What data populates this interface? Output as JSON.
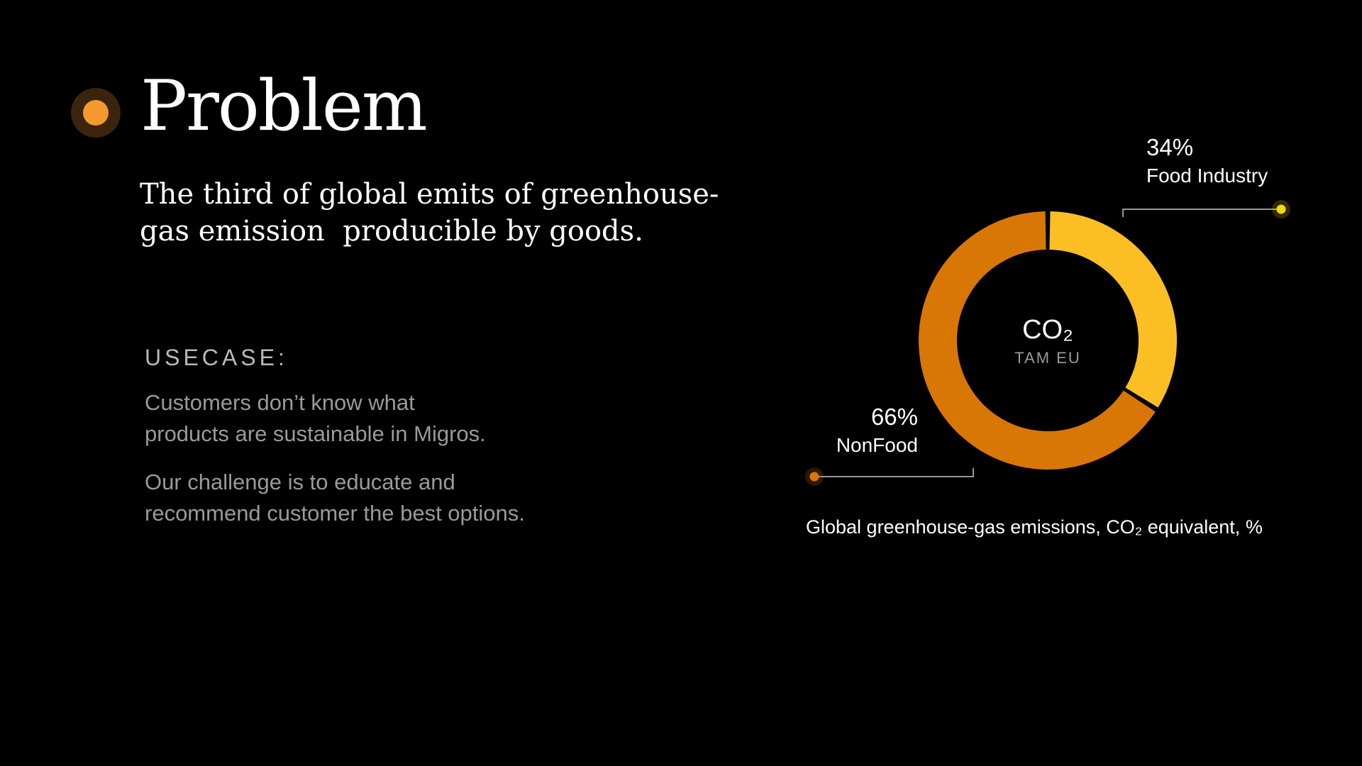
{
  "slide": {
    "title": "Problem",
    "subtitle_lines": [
      "The third of global emits of greenhouse-",
      "gas emission  producible by goods."
    ],
    "accent_color": "#f59a30"
  },
  "usecase": {
    "heading": "USECASE:",
    "paragraph1_lines": [
      "Customers don’t know what",
      "products are sustainable in Migros."
    ],
    "paragraph2_lines": [
      "Our challenge is to educate and",
      "recommend customer the best options."
    ]
  },
  "chart_data": {
    "type": "pie",
    "donut": true,
    "center_label": "CO₂",
    "center_sublabel": "TAM EU",
    "caption": "Global greenhouse-gas emissions, CO₂ equivalent, %",
    "slices": [
      {
        "label": "Food Industry",
        "value": 34,
        "value_label": "34%",
        "color": "#fbbf24",
        "marker_color": "#f5d90a"
      },
      {
        "label": "NonFood",
        "value": 66,
        "value_label": "66%",
        "color": "#d97706",
        "marker_color": "#d97706"
      }
    ]
  }
}
